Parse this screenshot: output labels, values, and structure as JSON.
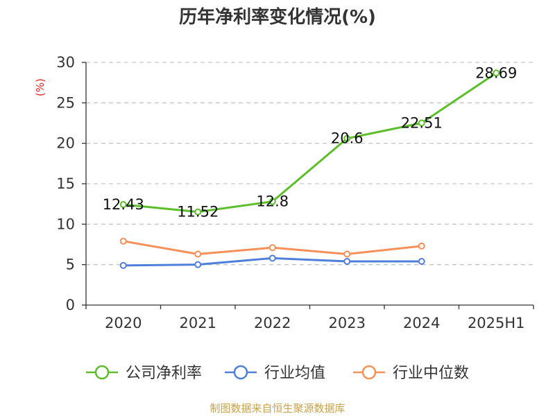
{
  "chart_data": {
    "type": "line",
    "title": "历年净利率变化情况(%)",
    "ylabel": "(%)",
    "categories": [
      "2020",
      "2021",
      "2022",
      "2023",
      "2024",
      "2025H1"
    ],
    "ylim": [
      0,
      30
    ],
    "yticks": [
      0,
      5,
      10,
      15,
      20,
      25,
      30
    ],
    "grid": true,
    "legend_position": "bottom",
    "series": [
      {
        "name": "公司净利率",
        "color": "#5cbf2a",
        "values": [
          12.43,
          11.52,
          12.8,
          20.6,
          22.51,
          28.69
        ],
        "labels": [
          "12.43",
          "11.52",
          "12.8",
          "20.6",
          "22.51",
          "28.69"
        ]
      },
      {
        "name": "行业均值",
        "color": "#4f7fdb",
        "values": [
          4.9,
          5.0,
          5.8,
          5.4,
          5.4,
          null
        ]
      },
      {
        "name": "行业中位数",
        "color": "#f79058",
        "values": [
          7.9,
          6.3,
          7.1,
          6.3,
          7.3,
          null
        ]
      }
    ]
  },
  "source": "制图数据来自恒生聚源数据库",
  "colors": {
    "grid": "#c8c8c8",
    "axis": "#333333",
    "ylabel": "#e02020",
    "source": "#c9a24a"
  }
}
